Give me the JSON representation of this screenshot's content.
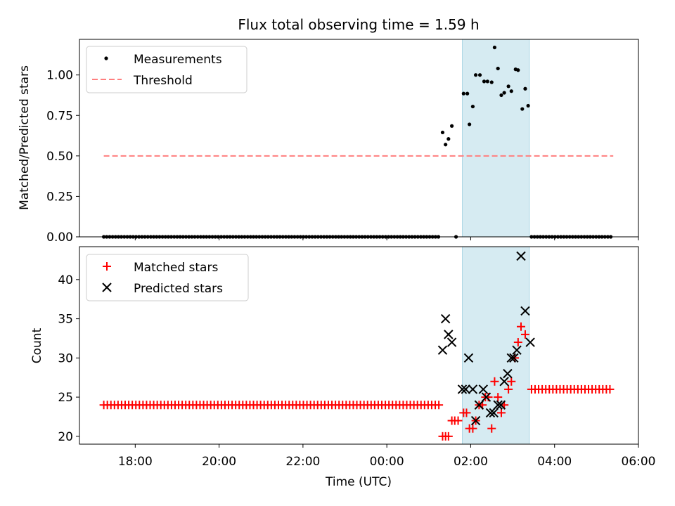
{
  "chart_data": [
    {
      "type": "scatter",
      "title": "Flux total observing time = 1.59 h",
      "ylabel": "Matched/Predicted stars",
      "xlabel": "",
      "xlim": [
        16.67,
        30.0
      ],
      "ylim": [
        0,
        1.22
      ],
      "yticks": [
        0.0,
        0.25,
        0.5,
        0.75,
        1.0
      ],
      "ytick_labels": [
        "0.00",
        "0.25",
        "0.50",
        "0.75",
        "1.00"
      ],
      "shaded_span": [
        25.8,
        27.4
      ],
      "threshold": {
        "name": "Threshold",
        "value": 0.5,
        "x_range": [
          17.25,
          29.4
        ],
        "color": "#ff7f7f"
      },
      "legend": [
        "Measurements",
        "Threshold"
      ],
      "series": [
        {
          "name": "Measurements",
          "color": "#000000",
          "marker": "dot",
          "zero_run": {
            "x_start": 17.25,
            "x_end": 25.28,
            "step": 0.07,
            "value": 0
          },
          "zero_run_2": {
            "x_start": 27.45,
            "x_end": 29.4,
            "step": 0.07,
            "value": 0
          },
          "points": [
            [
              25.33,
              0.645
            ],
            [
              25.4,
              0.57
            ],
            [
              25.47,
              0.605
            ],
            [
              25.55,
              0.685
            ],
            [
              25.65,
              0.0
            ],
            [
              25.83,
              0.885
            ],
            [
              25.92,
              0.885
            ],
            [
              25.97,
              0.695
            ],
            [
              26.05,
              0.805
            ],
            [
              26.12,
              1.0
            ],
            [
              26.22,
              1.0
            ],
            [
              26.32,
              0.96
            ],
            [
              26.4,
              0.96
            ],
            [
              26.5,
              0.955
            ],
            [
              26.57,
              1.17
            ],
            [
              26.65,
              1.04
            ],
            [
              26.73,
              0.875
            ],
            [
              26.8,
              0.89
            ],
            [
              26.9,
              0.93
            ],
            [
              26.97,
              0.9
            ],
            [
              27.07,
              1.035
            ],
            [
              27.13,
              1.03
            ],
            [
              27.23,
              0.79
            ],
            [
              27.3,
              0.915
            ],
            [
              27.37,
              0.81
            ]
          ]
        }
      ]
    },
    {
      "type": "scatter",
      "title": "",
      "xlabel": "Time (UTC)",
      "ylabel": "Count",
      "xlim": [
        16.67,
        30.0
      ],
      "ylim": [
        19,
        44.2
      ],
      "xticks": [
        18,
        20,
        22,
        24,
        26,
        28,
        30
      ],
      "xtick_labels": [
        "18:00",
        "20:00",
        "22:00",
        "00:00",
        "02:00",
        "04:00",
        "06:00"
      ],
      "yticks": [
        20,
        25,
        30,
        35,
        40
      ],
      "ytick_labels": [
        "20",
        "25",
        "30",
        "35",
        "40"
      ],
      "shaded_span": [
        25.8,
        27.4
      ],
      "legend": [
        "Matched stars",
        "Predicted stars"
      ],
      "series": [
        {
          "name": "Matched stars",
          "color": "#ff0000",
          "marker": "plus",
          "runs": [
            {
              "x_start": 17.25,
              "x_end": 25.28,
              "step": 0.085,
              "value": 24
            },
            {
              "x_start": 27.45,
              "x_end": 29.4,
              "step": 0.085,
              "value": 26
            }
          ],
          "points": [
            [
              25.33,
              20
            ],
            [
              25.4,
              20
            ],
            [
              25.47,
              20
            ],
            [
              25.55,
              22
            ],
            [
              25.62,
              22
            ],
            [
              25.7,
              22
            ],
            [
              25.83,
              23
            ],
            [
              25.9,
              23
            ],
            [
              25.97,
              21
            ],
            [
              26.05,
              21
            ],
            [
              26.12,
              22
            ],
            [
              26.2,
              24
            ],
            [
              26.28,
              24
            ],
            [
              26.35,
              25
            ],
            [
              26.42,
              25
            ],
            [
              26.5,
              21
            ],
            [
              26.57,
              27
            ],
            [
              26.65,
              25
            ],
            [
              26.73,
              23
            ],
            [
              26.8,
              24
            ],
            [
              26.9,
              26
            ],
            [
              26.97,
              27
            ],
            [
              27.05,
              30
            ],
            [
              27.13,
              32
            ],
            [
              27.2,
              34
            ],
            [
              27.3,
              33
            ]
          ]
        },
        {
          "name": "Predicted stars",
          "color": "#000000",
          "marker": "x",
          "points": [
            [
              25.33,
              31
            ],
            [
              25.4,
              35
            ],
            [
              25.47,
              33
            ],
            [
              25.55,
              32
            ],
            [
              25.8,
              26
            ],
            [
              25.88,
              26
            ],
            [
              25.95,
              30
            ],
            [
              26.05,
              26
            ],
            [
              26.12,
              22
            ],
            [
              26.2,
              24
            ],
            [
              26.3,
              26
            ],
            [
              26.37,
              25
            ],
            [
              26.47,
              23
            ],
            [
              26.55,
              23
            ],
            [
              26.65,
              24
            ],
            [
              26.72,
              24
            ],
            [
              26.8,
              27
            ],
            [
              26.88,
              28
            ],
            [
              26.97,
              30
            ],
            [
              27.03,
              30
            ],
            [
              27.1,
              31
            ],
            [
              27.2,
              43
            ],
            [
              27.3,
              36
            ],
            [
              27.42,
              32
            ]
          ]
        }
      ]
    }
  ]
}
